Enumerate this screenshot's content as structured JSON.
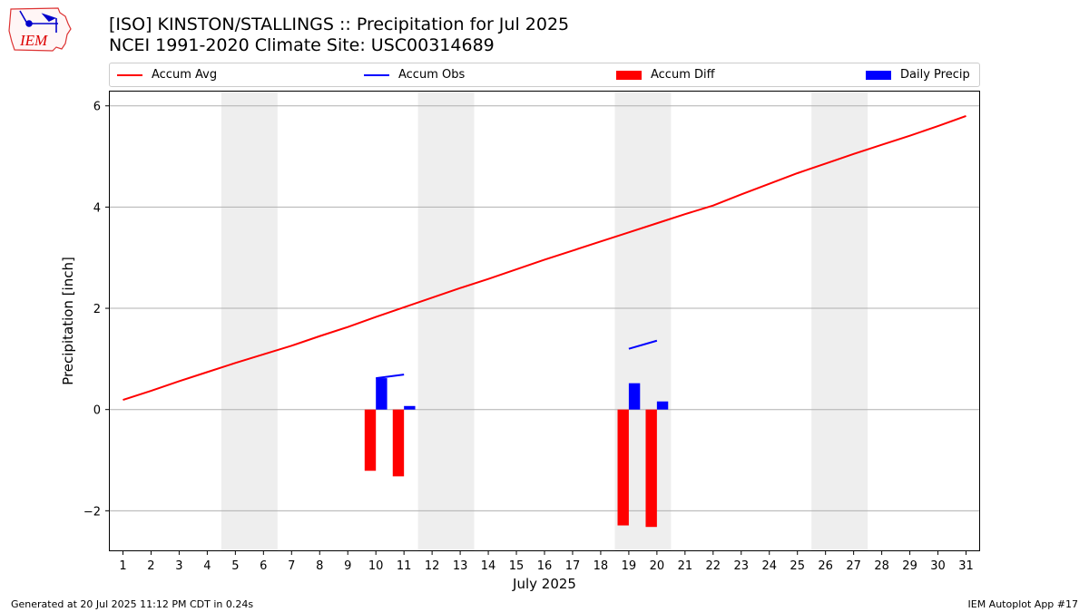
{
  "title": {
    "line1": "[ISO] KINSTON/STALLINGS :: Precipitation for Jul 2025",
    "line2": "NCEI 1991-2020 Climate Site: USC00314689"
  },
  "logo": {
    "text": "IEM"
  },
  "legend": {
    "items": [
      {
        "label": "Accum Avg",
        "color": "#ff0000",
        "kind": "line"
      },
      {
        "label": "Accum Obs",
        "color": "#0000ff",
        "kind": "line"
      },
      {
        "label": "Accum Diff",
        "color": "#ff0000",
        "kind": "box"
      },
      {
        "label": "Daily Precip",
        "color": "#0000ff",
        "kind": "box"
      }
    ]
  },
  "footer": {
    "left": "Generated at 20 Jul 2025 11:12 PM CDT in 0.24s",
    "right": "IEM Autoplot App #17"
  },
  "chart_data": {
    "type": "bar",
    "xlabel": "July 2025",
    "ylabel": "Precipitation [inch]",
    "xlim": [
      0.5,
      31.5
    ],
    "ylim": [
      -2.8,
      6.3
    ],
    "yticks": [
      -2,
      0,
      2,
      4,
      6
    ],
    "x": [
      1,
      2,
      3,
      4,
      5,
      6,
      7,
      8,
      9,
      10,
      11,
      12,
      13,
      14,
      15,
      16,
      17,
      18,
      19,
      20,
      21,
      22,
      23,
      24,
      25,
      26,
      27,
      28,
      29,
      30,
      31
    ],
    "grid": "horizontal",
    "weekend_shading": [
      [
        4.5,
        6.5
      ],
      [
        11.5,
        13.5
      ],
      [
        18.5,
        20.5
      ],
      [
        25.5,
        27.5
      ]
    ],
    "series": [
      {
        "name": "Accum Avg",
        "type": "line",
        "color": "#ff0000",
        "x": [
          1,
          2,
          3,
          4,
          5,
          6,
          7,
          8,
          9,
          10,
          11,
          12,
          13,
          14,
          15,
          16,
          17,
          18,
          19,
          20,
          21,
          22,
          23,
          24,
          25,
          26,
          27,
          28,
          29,
          30,
          31
        ],
        "values": [
          0.19,
          0.37,
          0.56,
          0.74,
          0.92,
          1.09,
          1.26,
          1.45,
          1.63,
          1.83,
          2.02,
          2.21,
          2.4,
          2.58,
          2.77,
          2.96,
          3.14,
          3.32,
          3.5,
          3.68,
          3.86,
          4.03,
          4.25,
          4.46,
          4.67,
          4.86,
          5.05,
          5.23,
          5.41,
          5.6,
          5.8
        ]
      },
      {
        "name": "Accum Obs",
        "type": "line",
        "color": "#0000ff",
        "x": [
          10,
          11,
          19,
          20
        ],
        "values": [
          0.62,
          0.69,
          1.2,
          1.36
        ]
      },
      {
        "name": "Accum Diff",
        "type": "bar",
        "color": "#ff0000",
        "x": [
          10,
          11,
          19,
          20
        ],
        "values": [
          -1.21,
          -1.32,
          -2.29,
          -2.32
        ]
      },
      {
        "name": "Daily Precip",
        "type": "bar",
        "color": "#0000ff",
        "x": [
          10,
          11,
          19,
          20
        ],
        "values": [
          0.62,
          0.07,
          0.52,
          0.16
        ]
      }
    ]
  }
}
